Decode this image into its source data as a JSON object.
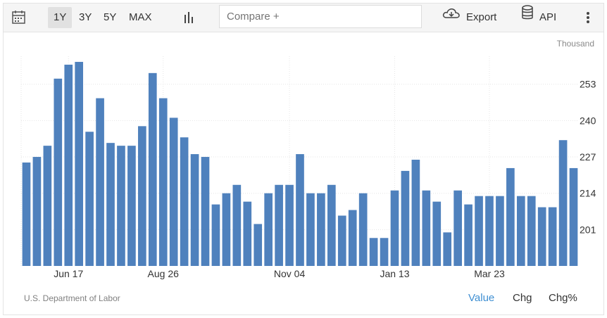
{
  "toolbar": {
    "calendar_icon": "calendar-icon",
    "ranges": [
      "1Y",
      "3Y",
      "5Y",
      "MAX"
    ],
    "active_range": "1Y",
    "chart_type_icon": "bar-chart-icon",
    "compare_placeholder": "Compare +",
    "export_label": "Export",
    "export_icon": "cloud-download-icon",
    "api_label": "API",
    "api_icon": "database-icon",
    "more_icon": "more-vertical-icon"
  },
  "unit_label": "Thousand",
  "source": "U.S. Department of Labor",
  "tabs": [
    "Value",
    "Chg",
    "Chg%"
  ],
  "active_tab": "Value",
  "colors": {
    "bar": "#4f81bd",
    "accent": "#3f8fd2",
    "grid": "#e6e6e6"
  },
  "chart_data": {
    "type": "bar",
    "x_tick_labels": [
      "Jun 17",
      "Aug 26",
      "Nov 04",
      "Jan 13",
      "Mar 23"
    ],
    "x_tick_bar_index": [
      4,
      13,
      25,
      35,
      44
    ],
    "y_tick_labels": [
      "201",
      "214",
      "227",
      "240",
      "253"
    ],
    "ylim": [
      188,
      263
    ],
    "grid": true,
    "values": [
      225,
      227,
      231,
      255,
      260,
      261,
      236,
      248,
      232,
      231,
      231,
      238,
      257,
      248,
      241,
      234,
      228,
      227,
      210,
      214,
      217,
      211,
      203,
      214,
      217,
      217,
      228,
      214,
      214,
      217,
      206,
      208,
      214,
      198,
      198,
      215,
      222,
      226,
      215,
      211,
      200,
      215,
      210,
      213,
      213,
      213,
      223,
      213,
      213,
      209,
      209,
      233,
      223
    ]
  }
}
